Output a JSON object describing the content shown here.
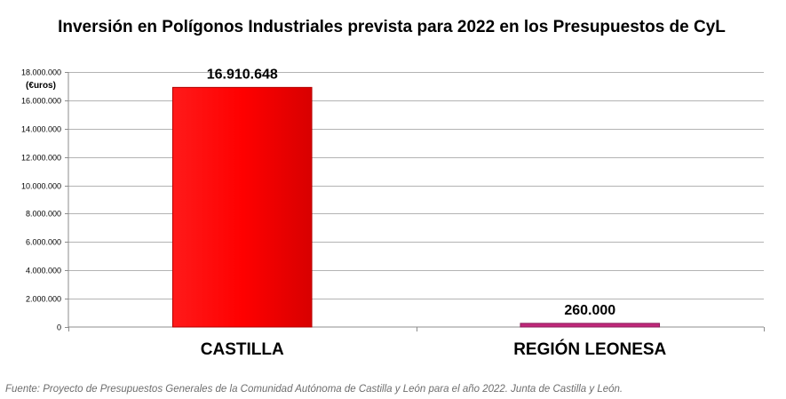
{
  "chart_data": {
    "type": "bar",
    "title": "Inversión en Polígonos Industriales prevista para 2022 en los Presupuestos de CyL",
    "ylabel": "(€uros)",
    "xlabel": "",
    "ylim": [
      0,
      18000000
    ],
    "yticks": [
      0,
      2000000,
      4000000,
      6000000,
      8000000,
      10000000,
      12000000,
      14000000,
      16000000,
      18000000
    ],
    "ytick_labels": [
      "0",
      "2.000.000",
      "4.000.000",
      "6.000.000",
      "8.000.000",
      "10.000.000",
      "12.000.000",
      "14.000.000",
      "16.000.000",
      "18.000.000"
    ],
    "categories": [
      "CASTILLA",
      "REGIÓN LEONESA"
    ],
    "values": [
      16910648,
      260000
    ],
    "value_labels": [
      "16.910.648",
      "260.000"
    ],
    "bar_colors": [
      "#ff0000",
      "#c0287a"
    ],
    "grid": true,
    "legend": "none",
    "source": "Fuente: Proyecto de Presupuestos Generales de la Comunidad Autónoma de Castilla y León para el año 2022. Junta de Castilla y León."
  }
}
